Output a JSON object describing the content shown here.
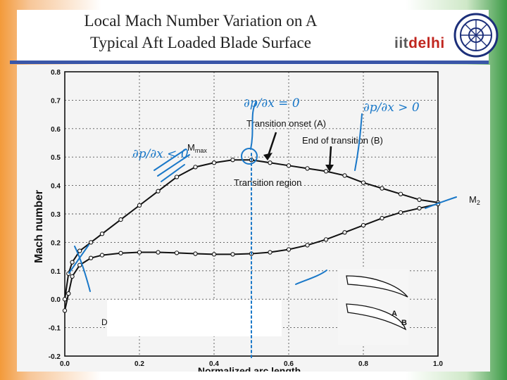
{
  "slide": {
    "title_line1": "Local Mach Number Variation on A",
    "title_line2": "Typical Aft Loaded Blade Surface",
    "logo_iit": "iit",
    "logo_delhi": "delhi"
  },
  "colors": {
    "rule": "#3a56a8",
    "ink": "#111111",
    "annotation": "#1a78c8",
    "logo_red": "#c0261f"
  },
  "chart_data": {
    "type": "line",
    "xlabel": "Normalized arc length",
    "ylabel": "Mach number",
    "xlim": [
      0.0,
      1.0
    ],
    "ylim": [
      -0.2,
      0.8
    ],
    "x_ticks": [
      "0.0",
      "0.2",
      "0.4",
      "0.6",
      "0.8",
      "1.0"
    ],
    "y_ticks": [
      "-0.2",
      "-0.1",
      "0.0",
      "0.1",
      "0.2",
      "0.3",
      "0.4",
      "0.5",
      "0.6",
      "0.7",
      "0.8"
    ],
    "grid": true,
    "series": [
      {
        "values": [
          [
            0.0,
            0.0
          ],
          [
            0.01,
            0.09
          ],
          [
            0.02,
            0.13
          ],
          [
            0.04,
            0.17
          ],
          [
            0.07,
            0.2
          ],
          [
            0.1,
            0.23
          ],
          [
            0.15,
            0.28
          ],
          [
            0.2,
            0.33
          ],
          [
            0.25,
            0.38
          ],
          [
            0.3,
            0.43
          ],
          [
            0.35,
            0.465
          ],
          [
            0.4,
            0.48
          ],
          [
            0.45,
            0.49
          ],
          [
            0.5,
            0.49
          ],
          [
            0.55,
            0.48
          ],
          [
            0.6,
            0.47
          ],
          [
            0.65,
            0.46
          ],
          [
            0.7,
            0.45
          ],
          [
            0.75,
            0.435
          ],
          [
            0.8,
            0.41
          ],
          [
            0.85,
            0.39
          ],
          [
            0.9,
            0.37
          ],
          [
            0.95,
            0.35
          ],
          [
            1.0,
            0.34
          ]
        ]
      },
      {
        "values": [
          [
            0.0,
            -0.04
          ],
          [
            0.01,
            0.02
          ],
          [
            0.02,
            0.08
          ],
          [
            0.04,
            0.12
          ],
          [
            0.07,
            0.145
          ],
          [
            0.1,
            0.155
          ],
          [
            0.15,
            0.162
          ],
          [
            0.2,
            0.165
          ],
          [
            0.25,
            0.165
          ],
          [
            0.3,
            0.163
          ],
          [
            0.35,
            0.16
          ],
          [
            0.4,
            0.158
          ],
          [
            0.45,
            0.158
          ],
          [
            0.5,
            0.16
          ],
          [
            0.55,
            0.165
          ],
          [
            0.6,
            0.175
          ],
          [
            0.65,
            0.19
          ],
          [
            0.7,
            0.21
          ],
          [
            0.75,
            0.235
          ],
          [
            0.8,
            0.26
          ],
          [
            0.85,
            0.285
          ],
          [
            0.9,
            0.305
          ],
          [
            0.95,
            0.32
          ],
          [
            1.0,
            0.335
          ]
        ]
      }
    ],
    "annotations": {
      "transition_onset": "Transition onset (A)",
      "end_of_transition": "End of transition (B)",
      "transition_region": "Transition region",
      "m_max": "M",
      "m_max_sub": "max",
      "m2": "M",
      "m2_sub": "2",
      "inset_label_a": "A",
      "inset_label_b": "B",
      "inset_label_d": "D"
    },
    "handwritten": {
      "left": "∂p/∂x < 0",
      "middle": "∂p/∂x = 0",
      "right": "∂p/∂x > 0"
    }
  }
}
